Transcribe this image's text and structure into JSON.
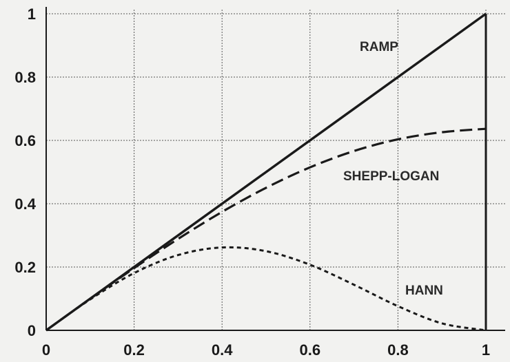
{
  "chart_data": {
    "type": "line",
    "title": "",
    "xlabel": "",
    "ylabel": "",
    "xlim": [
      0,
      1
    ],
    "ylim": [
      0,
      1
    ],
    "grid": true,
    "x_ticks": [
      "0",
      "0.2",
      "0.4",
      "0.6",
      "0.8",
      "1"
    ],
    "y_ticks": [
      "0",
      "0.2",
      "0.4",
      "0.6",
      "0.8",
      "1"
    ],
    "colors": {
      "line": "#1a1a1a",
      "grid": "#555555",
      "background": "#f2f2f0"
    },
    "series": [
      {
        "name": "RAMP",
        "style": "solid",
        "x": [
          0,
          1
        ],
        "y": [
          0,
          1
        ]
      },
      {
        "name": "SHEPP-LOGAN",
        "style": "dashed",
        "x": [
          0,
          0.1,
          0.2,
          0.3,
          0.4,
          0.5,
          0.6,
          0.7,
          0.8,
          0.9,
          1.0
        ],
        "y": [
          0,
          0.0996,
          0.1967,
          0.2888,
          0.3742,
          0.4502,
          0.5148,
          0.5664,
          0.6034,
          0.6258,
          0.6366
        ]
      },
      {
        "name": "HANN",
        "style": "dotted",
        "x": [
          0,
          0.1,
          0.2,
          0.3,
          0.4,
          0.5,
          0.6,
          0.7,
          0.8,
          0.9,
          1.0
        ],
        "y": [
          0,
          0.0976,
          0.1809,
          0.2378,
          0.2618,
          0.25,
          0.2073,
          0.1441,
          0.0764,
          0.0221,
          0
        ]
      }
    ],
    "annotations": [
      {
        "text": "RAMP",
        "series": "RAMP"
      },
      {
        "text": "SHEPP-LOGAN",
        "series": "SHEPP-LOGAN"
      },
      {
        "text": "HANN",
        "series": "HANN"
      }
    ]
  }
}
